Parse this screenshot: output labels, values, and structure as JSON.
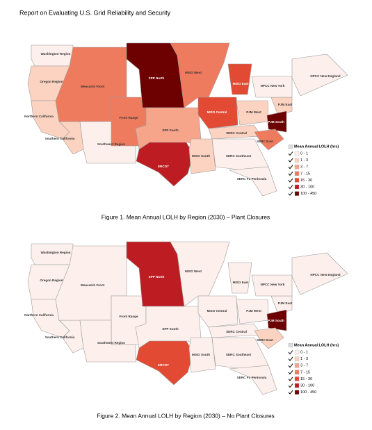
{
  "header": {
    "title": "Report on Evaluating U.S. Grid Reliability and Security"
  },
  "figures": [
    {
      "caption": "Figure 1. Mean Annual LOLH by Region (2030) – Plant Closures",
      "regions": [
        {
          "label": "Washington Region",
          "color": "#fdf0ec"
        },
        {
          "label": "Oregon Region",
          "color": "#fcd3c1"
        },
        {
          "label": "Northern California",
          "color": "#fcd3c1"
        },
        {
          "label": "Southern California",
          "color": "#fcd3c1"
        },
        {
          "label": "Weasatch Front",
          "color": "#ef7b5f"
        },
        {
          "label": "Front Range",
          "color": "#ef7b5f"
        },
        {
          "label": "Southwest Region",
          "color": "#fdf0ec"
        },
        {
          "label": "SPP North",
          "color": "#6d0000"
        },
        {
          "label": "SPP South",
          "color": "#f6a58a"
        },
        {
          "label": "ERCOT",
          "color": "#bd1d22"
        },
        {
          "label": "MISO West",
          "color": "#ef7b5f"
        },
        {
          "label": "MISO East",
          "color": "#e34a33"
        },
        {
          "label": "MISO Central",
          "color": "#e34a33"
        },
        {
          "label": "PJM West",
          "color": "#fcd3c1"
        },
        {
          "label": "PJM East",
          "color": "#fcd3c1"
        },
        {
          "label": "PJM South",
          "color": "#6d0000"
        },
        {
          "label": "SERC Central",
          "color": "#fcd3c1"
        },
        {
          "label": "MISO South",
          "color": "#fcd3c1"
        },
        {
          "label": "SERC Southeast",
          "color": "#fdf0ec"
        },
        {
          "label": "SERC East",
          "color": "#ef7b5f"
        },
        {
          "label": "SERC FL Peninsula",
          "color": "#fdf0ec"
        },
        {
          "label": "NPCC New York",
          "color": "#fdf0ec"
        },
        {
          "label": "NPCC New England",
          "color": "#fdf0ec"
        }
      ],
      "legend": {
        "title": "Mean Annual LOLH (hrs)",
        "entries": [
          {
            "label": "0 - 1",
            "color": "#fdf0ec"
          },
          {
            "label": "1 - 3",
            "color": "#fcd3c1"
          },
          {
            "label": "3 - 7",
            "color": "#f6a58a"
          },
          {
            "label": "7 - 15",
            "color": "#ef7b5f"
          },
          {
            "label": "15 - 30",
            "color": "#e34a33"
          },
          {
            "label": "30 - 100",
            "color": "#bd1d22"
          },
          {
            "label": "100 - 450",
            "color": "#6d0000"
          }
        ]
      }
    },
    {
      "caption": "Figure 2. Mean Annual LOLH by Region (2030) – No Plant Closures",
      "regions": [
        {
          "label": "Washington Region",
          "color": "#fdf0ec"
        },
        {
          "label": "Oregon Region",
          "color": "#fdf0ec"
        },
        {
          "label": "Northern California",
          "color": "#fdf0ec"
        },
        {
          "label": "Southern California",
          "color": "#fdf0ec"
        },
        {
          "label": "Weasatch Front",
          "color": "#fdf0ec"
        },
        {
          "label": "Front Range",
          "color": "#fdf0ec"
        },
        {
          "label": "Southwest Region",
          "color": "#fdf0ec"
        },
        {
          "label": "SPP North",
          "color": "#bd1d22"
        },
        {
          "label": "SPP South",
          "color": "#fdf0ec"
        },
        {
          "label": "ERCOT",
          "color": "#e34a33"
        },
        {
          "label": "MISO West",
          "color": "#fdf0ec"
        },
        {
          "label": "MISO East",
          "color": "#fdf0ec"
        },
        {
          "label": "MISO Central",
          "color": "#fdf0ec"
        },
        {
          "label": "PJM West",
          "color": "#fdf0ec"
        },
        {
          "label": "PJM East",
          "color": "#fdf0ec"
        },
        {
          "label": "PJM South",
          "color": "#6d0000"
        },
        {
          "label": "SERC Central",
          "color": "#fdf0ec"
        },
        {
          "label": "MISO South",
          "color": "#fdf0ec"
        },
        {
          "label": "SERC Southeast",
          "color": "#fdf0ec"
        },
        {
          "label": "SERC East",
          "color": "#fcd3c1"
        },
        {
          "label": "SERC FL Peninsula",
          "color": "#fdf0ec"
        },
        {
          "label": "NPCC New York",
          "color": "#fdf0ec"
        },
        {
          "label": "NPCC New England",
          "color": "#fdf0ec"
        }
      ],
      "legend": {
        "title": "Mean Annual LOLH (hrs)",
        "entries": [
          {
            "label": "0 - 1",
            "color": "#fdf0ec"
          },
          {
            "label": "1 - 3",
            "color": "#fcd3c1"
          },
          {
            "label": "3 - 7",
            "color": "#f6a58a"
          },
          {
            "label": "7 - 15",
            "color": "#ef7b5f"
          },
          {
            "label": "15 - 30",
            "color": "#e34a33"
          },
          {
            "label": "30 - 100",
            "color": "#bd1d22"
          },
          {
            "label": "100 - 450",
            "color": "#6d0000"
          }
        ]
      }
    }
  ]
}
